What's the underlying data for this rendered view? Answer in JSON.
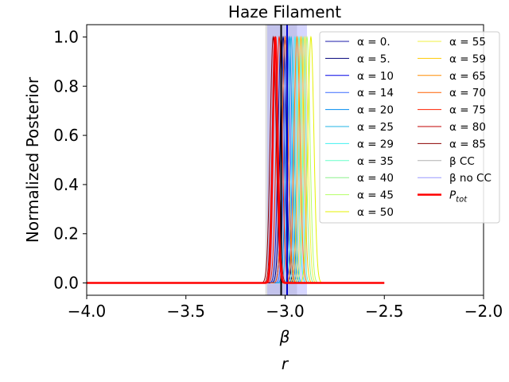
{
  "chart_data": {
    "type": "line",
    "title": "Haze Filament",
    "xlabel": "β",
    "ylabel": "Normalized Posterior",
    "xlim": [
      -4.0,
      -2.0
    ],
    "ylim": [
      -0.05,
      1.05
    ],
    "x_ticks": [
      -4.0,
      -3.5,
      -3.0,
      -2.5,
      -2.0
    ],
    "x_tick_labels": [
      "−4.0",
      "−3.5",
      "−3.0",
      "−2.5",
      "−2.0"
    ],
    "y_ticks": [
      0.0,
      0.2,
      0.4,
      0.6,
      0.8,
      1.0
    ],
    "y_tick_labels": [
      "0.0",
      "0.2",
      "0.4",
      "0.6",
      "0.8",
      "1.0"
    ],
    "grid": false,
    "legend_position": "top-right",
    "legend_columns": 2,
    "alpha_series": [
      {
        "name": "α = 0.",
        "peak": -3.02,
        "width": 0.015,
        "color": "#1a1aa8"
      },
      {
        "name": "α = 5.",
        "peak": -3.01,
        "width": 0.015,
        "color": "#00007a"
      },
      {
        "name": "α = 10",
        "peak": -3.0,
        "width": 0.015,
        "color": "#0000e6"
      },
      {
        "name": "α = 14",
        "peak": -2.99,
        "width": 0.015,
        "color": "#3a6cff"
      },
      {
        "name": "α = 20",
        "peak": -2.98,
        "width": 0.015,
        "color": "#008cf0"
      },
      {
        "name": "α = 25",
        "peak": -2.97,
        "width": 0.015,
        "color": "#20b4e6"
      },
      {
        "name": "α = 29",
        "peak": -2.95,
        "width": 0.015,
        "color": "#40f0f0"
      },
      {
        "name": "α = 35",
        "peak": -2.93,
        "width": 0.015,
        "color": "#66ffc8"
      },
      {
        "name": "α = 40",
        "peak": -2.91,
        "width": 0.015,
        "color": "#8cf08c"
      },
      {
        "name": "α = 45",
        "peak": -2.89,
        "width": 0.015,
        "color": "#b4ff66"
      },
      {
        "name": "α = 50",
        "peak": -2.87,
        "width": 0.015,
        "color": "#e6f000"
      },
      {
        "name": "α = 55",
        "peak": -2.9,
        "width": 0.015,
        "color": "#f0f040"
      },
      {
        "name": "α = 59",
        "peak": -2.92,
        "width": 0.015,
        "color": "#ffc800"
      },
      {
        "name": "α = 65",
        "peak": -2.94,
        "width": 0.015,
        "color": "#ff8c00"
      },
      {
        "name": "α = 70",
        "peak": -3.0,
        "width": 0.015,
        "color": "#ff6000"
      },
      {
        "name": "α = 75",
        "peak": -3.03,
        "width": 0.015,
        "color": "#ff2000"
      },
      {
        "name": "α = 80",
        "peak": -3.05,
        "width": 0.015,
        "color": "#c00000"
      },
      {
        "name": "α = 85",
        "peak": -3.06,
        "width": 0.015,
        "color": "#8c0000"
      }
    ],
    "bands": [
      {
        "name": "β CC",
        "center": -3.02,
        "halfwidth": 0.08,
        "color": "#b0b0b0"
      },
      {
        "name": "β no CC",
        "center": -2.99,
        "halfwidth": 0.1,
        "color": "#9999ff"
      }
    ],
    "total": {
      "name": "P_tot",
      "peak": -3.05,
      "width": 0.012,
      "x_range": [
        -4.0,
        -2.5
      ],
      "color": "#ff0000"
    },
    "vertical_lines": [
      {
        "x": -3.02,
        "color": "#000000"
      },
      {
        "x": -2.99,
        "color": "#0000cc"
      }
    ],
    "stray_text": "r"
  }
}
